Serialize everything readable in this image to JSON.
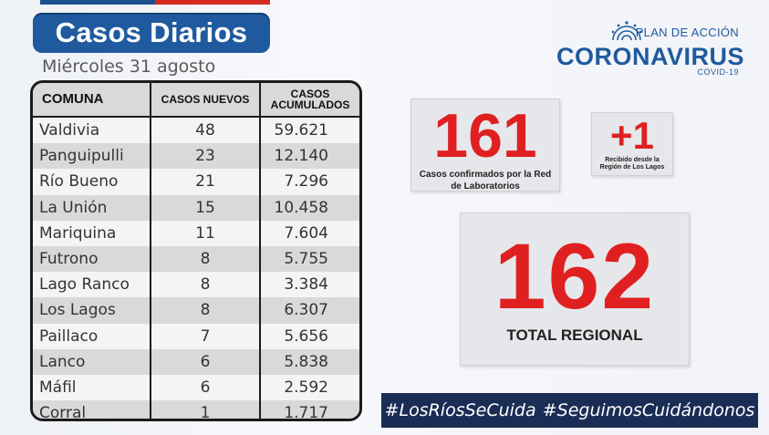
{
  "header": {
    "title": "Casos Diarios",
    "date": "Miércoles 31 agosto"
  },
  "logo": {
    "plan": "PLAN DE ACCIÓN",
    "corona": "CORONAVIRUS",
    "covid": "COVID-19"
  },
  "table": {
    "headers": [
      "COMUNA",
      "CASOS NUEVOS",
      "CASOS ACUMULADOS"
    ],
    "rows": [
      {
        "comuna": "Valdivia",
        "nuevos": "48",
        "acumulados": "59.621"
      },
      {
        "comuna": "Panguipulli",
        "nuevos": "23",
        "acumulados": "12.140"
      },
      {
        "comuna": "Río Bueno",
        "nuevos": "21",
        "acumulados": "7.296"
      },
      {
        "comuna": "La Unión",
        "nuevos": "15",
        "acumulados": "10.458"
      },
      {
        "comuna": "Mariquina",
        "nuevos": "11",
        "acumulados": "7.604"
      },
      {
        "comuna": "Futrono",
        "nuevos": "8",
        "acumulados": "5.755"
      },
      {
        "comuna": "Lago Ranco",
        "nuevos": "8",
        "acumulados": "3.384"
      },
      {
        "comuna": "Los Lagos",
        "nuevos": "8",
        "acumulados": "6.307"
      },
      {
        "comuna": "Paillaco",
        "nuevos": "7",
        "acumulados": "5.656"
      },
      {
        "comuna": "Lanco",
        "nuevos": "6",
        "acumulados": "5.838"
      },
      {
        "comuna": "Máfil",
        "nuevos": "6",
        "acumulados": "2.592"
      },
      {
        "comuna": "Corral",
        "nuevos": "1",
        "acumulados": "1.717"
      }
    ]
  },
  "stats": {
    "confirmed": {
      "value": "161",
      "caption": "Casos confirmados por la Red de Laboratorios"
    },
    "received": {
      "value": "+1",
      "caption": "Recibido desde la Región de Los Lagos"
    },
    "total": {
      "value": "162",
      "caption": "TOTAL REGIONAL"
    }
  },
  "hashtags": [
    "#LosRíosSeCuida",
    "#SeguimosCuidándonos"
  ],
  "colors": {
    "brand_blue": "#1f5a9e",
    "alert_red": "#e02020",
    "navy": "#1a2d55"
  }
}
